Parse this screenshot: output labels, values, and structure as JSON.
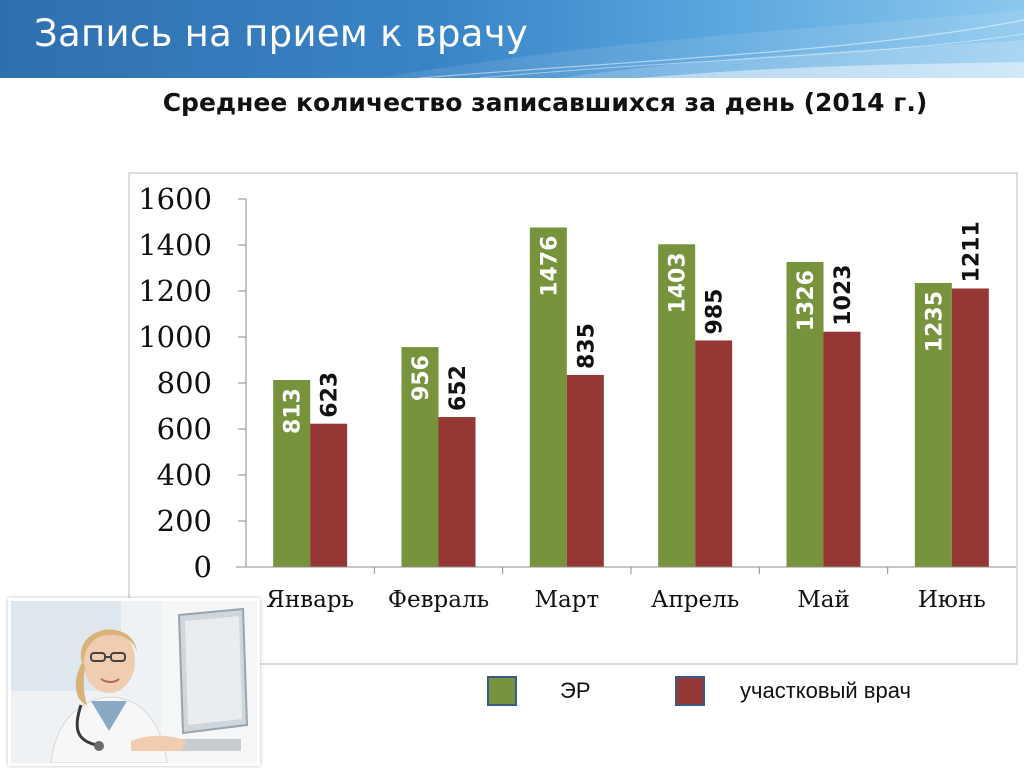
{
  "header": {
    "title": "Запись на прием к врачу"
  },
  "chart_data": {
    "type": "bar",
    "title": "Среднее количество записавшихся за день (2014 г.)",
    "xlabel": "",
    "ylabel": "",
    "categories": [
      "Январь",
      "Февраль",
      "Март",
      "Апрель",
      "Май",
      "Июнь"
    ],
    "series": [
      {
        "name": "ЭР",
        "values": [
          813,
          956,
          1476,
          1403,
          1326,
          1235
        ],
        "color": "#77933c"
      },
      {
        "name": "участковый врач",
        "values": [
          623,
          652,
          835,
          985,
          1023,
          1211
        ],
        "color": "#953735"
      }
    ],
    "ylim": [
      0,
      1600
    ],
    "yticks": [
      0,
      200,
      400,
      600,
      800,
      1000,
      1200,
      1400,
      1600
    ],
    "grid": false,
    "legend_position": "bottom-right"
  },
  "photo": {
    "icon": "doctor-at-computer-photo"
  }
}
